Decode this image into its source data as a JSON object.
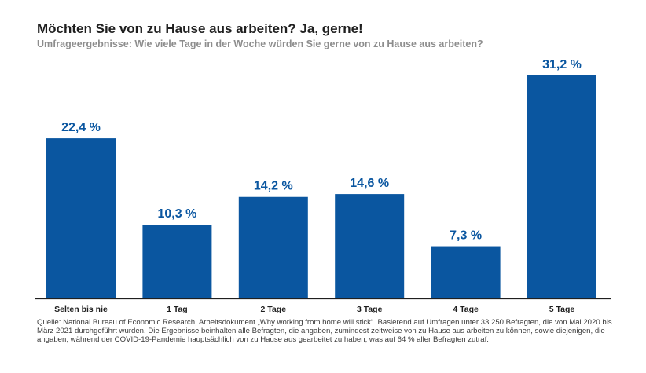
{
  "chart_data": {
    "type": "bar",
    "title": "Möchten Sie von zu Hause aus arbeiten? Ja, gerne!",
    "subtitle": "Umfrageergebnisse: Wie viele Tage in der Woche würden Sie gerne von zu Hause aus arbeiten?",
    "categories": [
      "Selten bis nie",
      "1 Tag",
      "2 Tage",
      "3 Tage",
      "4 Tage",
      "5 Tage"
    ],
    "values": [
      22.4,
      10.3,
      14.2,
      14.6,
      7.3,
      31.2
    ],
    "value_labels": [
      "22,4 %",
      "10,3 %",
      "14,2 %",
      "14,6 %",
      "7,3 %",
      "31,2 %"
    ],
    "xlabel": "",
    "ylabel": "",
    "ylim": [
      0,
      31.2
    ],
    "grid": false,
    "bar_color": "#0a56a0",
    "label_color": "#0a56a0",
    "source": "Quelle: National Bureau of Economic Research, Arbeitsdokument „Why working from home will stick“. Basierend auf Umfragen unter 33.250 Befragten, die von Mai 2020 bis März 2021 durchgeführt wurden. Die Ergebnisse beinhalten alle Befragten, die angaben, zumindest zeitweise von zu Hause aus arbeiten zu können, sowie diejenigen, die angaben, während der COVID-19-Pandemie hauptsächlich von zu Hause aus gearbeitet zu haben, was auf 64 % aller Befragten zutraf."
  }
}
